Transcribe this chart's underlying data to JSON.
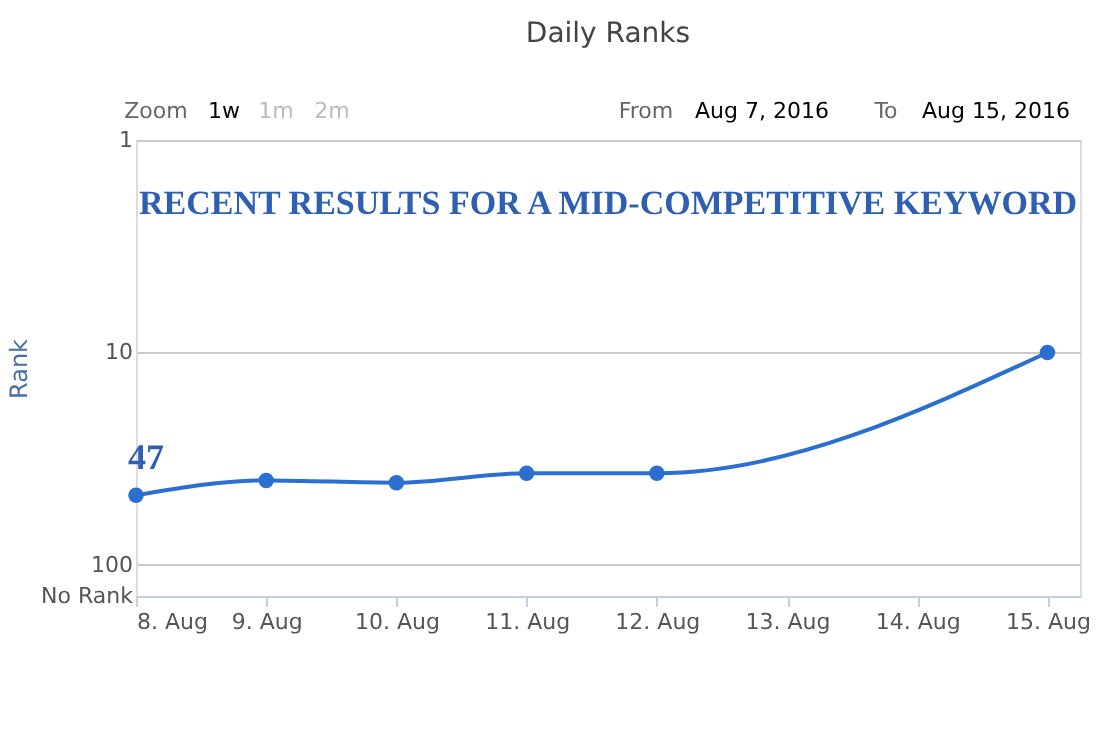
{
  "chart_data": {
    "type": "line",
    "title": "Daily Ranks",
    "ylabel": "Rank",
    "x": [
      "2016-08-08",
      "2016-08-09",
      "2016-08-10",
      "2016-08-11",
      "2016-08-12",
      "2016-08-15"
    ],
    "series": [
      {
        "color": "#2b6fd1",
        "values": [
          47,
          40,
          41,
          37,
          37,
          10
        ]
      }
    ],
    "log": "y",
    "ylim": [
      140,
      1
    ],
    "yticks": [
      1,
      10,
      100,
      {
        "value": 140,
        "label": "No Rank"
      }
    ],
    "xlim": [
      "2016-08-08",
      "2016-08-15T06:00"
    ],
    "xticks": [
      {
        "value": "2016-08-08",
        "label": "8. Aug"
      },
      {
        "value": "2016-08-09",
        "label": "9. Aug"
      },
      {
        "value": "2016-08-10",
        "label": "10. Aug"
      },
      {
        "value": "2016-08-11",
        "label": "11. Aug"
      },
      {
        "value": "2016-08-12",
        "label": "12. Aug"
      },
      {
        "value": "2016-08-13",
        "label": "13. Aug"
      },
      {
        "value": "2016-08-14",
        "label": "14. Aug"
      },
      {
        "value": "2016-08-15",
        "label": "15. Aug"
      }
    ],
    "grid": "y",
    "marker": "circle",
    "line_style": "solid",
    "annotations": [
      "RECENT RESULTS FOR A MID-COMPETITIVE KEYWORD",
      "Zoom",
      "1w",
      "1m",
      "2m",
      "From",
      "Aug 7, 2016",
      "To",
      "Aug 15, 2016",
      {
        "text": "47",
        "x": "2016-08-08",
        "y": 47
      }
    ]
  }
}
